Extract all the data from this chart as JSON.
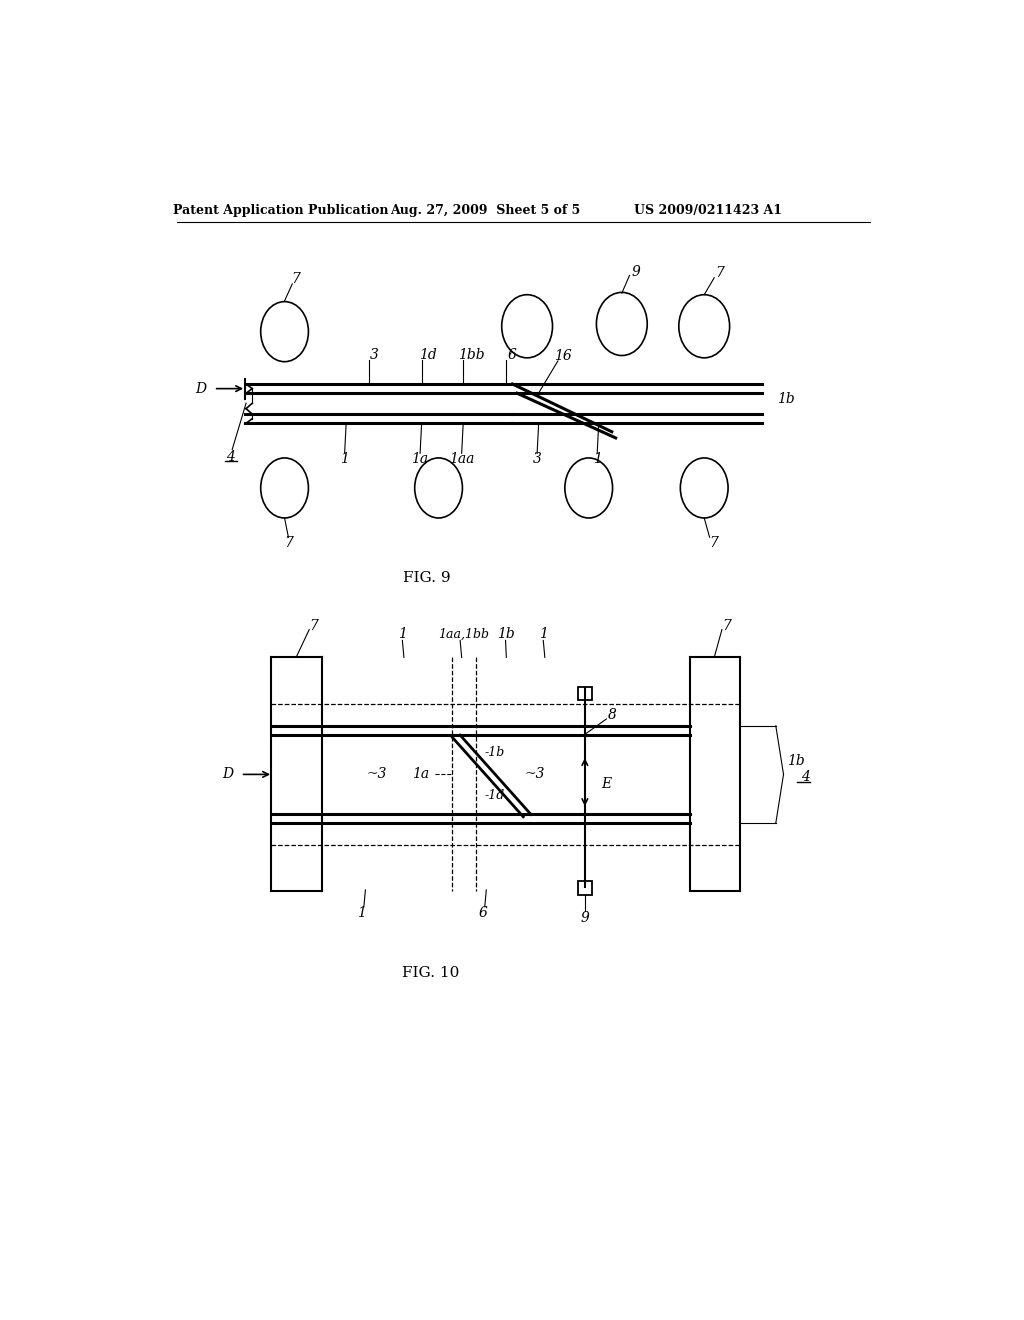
{
  "bg_color": "#ffffff",
  "header_left": "Patent Application Publication",
  "header_mid": "Aug. 27, 2009  Sheet 5 of 5",
  "header_right": "US 2009/0211423 A1",
  "fig9_label": "FIG. 9",
  "fig10_label": "FIG. 10"
}
